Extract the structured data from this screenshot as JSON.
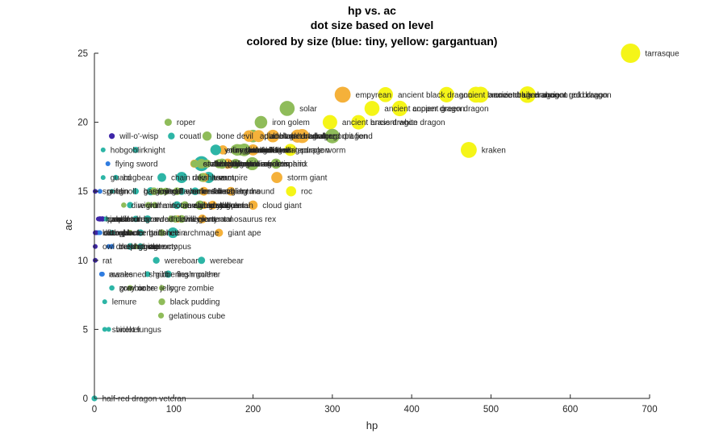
{
  "chart_data": {
    "type": "scatter",
    "title_lines": [
      "hp vs. ac",
      "dot size based on level",
      "colored by size (blue: tiny, yellow: gargantuan)"
    ],
    "xlabel": "hp",
    "ylabel": "ac",
    "xlim": [
      0,
      700
    ],
    "ylim": [
      0,
      25
    ],
    "xticks": [
      0,
      100,
      200,
      300,
      400,
      500,
      600,
      700
    ],
    "yticks": [
      0,
      5,
      10,
      15,
      20,
      25
    ],
    "size_colors": {
      "tiny": "#3e26a8",
      "small": "#2f7ce0",
      "medium": "#2db5a6",
      "large": "#8fbc5a",
      "huge": "#f5b13a",
      "gargantuan": "#f5f518"
    },
    "points": [
      {
        "name": "tarrasque",
        "x": 676,
        "y": 25,
        "level": 30,
        "size": "gargantuan"
      },
      {
        "name": "ancient black dragon",
        "x": 367,
        "y": 22,
        "level": 21,
        "size": "gargantuan"
      },
      {
        "name": "ancient blue dragon",
        "x": 481,
        "y": 22,
        "level": 23,
        "size": "gargantuan"
      },
      {
        "name": "ancient silver dragon",
        "x": 487,
        "y": 22,
        "level": 23,
        "size": "gargantuan"
      },
      {
        "name": "ancient gold dragon",
        "x": 546,
        "y": 22,
        "level": 24,
        "size": "gargantuan"
      },
      {
        "name": "ancient red dragon",
        "x": 546,
        "y": 22,
        "level": 24,
        "size": "gargantuan"
      },
      {
        "name": "ancient bronze dragon",
        "x": 444,
        "y": 22,
        "level": 22,
        "size": "gargantuan"
      },
      {
        "name": "ancient copper dragon",
        "x": 350,
        "y": 21,
        "level": 21,
        "size": "gargantuan"
      },
      {
        "name": "ancient green dragon",
        "x": 385,
        "y": 21,
        "level": 22,
        "size": "gargantuan"
      },
      {
        "name": "ancient brass dragon",
        "x": 297,
        "y": 20,
        "level": 20,
        "size": "gargantuan"
      },
      {
        "name": "ancient white dragon",
        "x": 333,
        "y": 20,
        "level": 20,
        "size": "gargantuan"
      },
      {
        "name": "kraken",
        "x": 472,
        "y": 18,
        "level": 23,
        "size": "gargantuan"
      },
      {
        "name": "solar",
        "x": 243,
        "y": 21,
        "level": 21,
        "size": "large"
      },
      {
        "name": "roper",
        "x": 93,
        "y": 20,
        "level": 5,
        "size": "large"
      },
      {
        "name": "iron golem",
        "x": 210,
        "y": 20,
        "level": 16,
        "size": "large"
      },
      {
        "name": "will-o'-wisp",
        "x": 22,
        "y": 19,
        "level": 2,
        "size": "tiny"
      },
      {
        "name": "storm giant",
        "x": 230,
        "y": 16,
        "level": 13,
        "size": "huge"
      },
      {
        "name": "roc",
        "x": 248,
        "y": 15,
        "level": 11,
        "size": "gargantuan"
      },
      {
        "name": "cloud giant",
        "x": 200,
        "y": 14,
        "level": 9,
        "size": "huge"
      },
      {
        "name": "werebear",
        "x": 135,
        "y": 10,
        "level": 5,
        "size": "medium"
      },
      {
        "name": "black pudding",
        "x": 85,
        "y": 7,
        "level": 4,
        "size": "large"
      },
      {
        "name": "gelatinous cube",
        "x": 84,
        "y": 6,
        "level": 2,
        "size": "large"
      },
      {
        "name": "ogre zombie",
        "x": 85,
        "y": 8,
        "level": 2,
        "size": "large"
      },
      {
        "name": "lemure",
        "x": 13,
        "y": 7,
        "level": 0,
        "size": "medium"
      },
      {
        "name": "shrieker",
        "x": 13,
        "y": 5,
        "level": 0,
        "size": "medium"
      },
      {
        "name": "violet fungus",
        "x": 18,
        "y": 5,
        "level": 0,
        "size": "medium"
      },
      {
        "name": "half-red dragon veteran",
        "x": 0,
        "y": 0,
        "level": 2,
        "size": "medium"
      },
      {
        "name": "hobgoblin",
        "x": 11,
        "y": 18,
        "level": 0,
        "size": "medium"
      },
      {
        "name": "tyrannosaurus rex",
        "x": 136,
        "y": 13,
        "level": 8,
        "size": "huge"
      },
      {
        "name": "giant ape",
        "x": 157,
        "y": 12,
        "level": 7,
        "size": "huge"
      },
      {
        "name": "shambling mound",
        "x": 136,
        "y": 15,
        "level": 5,
        "size": "large"
      },
      {
        "name": "vampire",
        "x": 144,
        "y": 16,
        "level": 13,
        "size": "medium"
      },
      {
        "name": "androsphinx",
        "x": 199,
        "y": 17,
        "level": 17,
        "size": "large"
      },
      {
        "name": "purple worm",
        "x": 247,
        "y": 18,
        "level": 15,
        "size": "gargantuan"
      },
      {
        "name": "bone devil",
        "x": 142,
        "y": 19,
        "level": 9,
        "size": "large"
      },
      {
        "name": "couatl",
        "x": 97,
        "y": 19,
        "level": 4,
        "size": "medium"
      },
      {
        "name": "archmage",
        "x": 99,
        "y": 12,
        "level": 12,
        "size": "medium"
      },
      {
        "name": "swarm",
        "x": 22,
        "y": 12,
        "level": 1,
        "size": "medium"
      },
      {
        "name": "wereboar",
        "x": 78,
        "y": 10,
        "level": 4,
        "size": "medium"
      },
      {
        "name": "awakened shrub",
        "x": 10,
        "y": 9,
        "level": 0,
        "size": "small"
      },
      {
        "name": "gibbering mouther",
        "x": 67,
        "y": 9,
        "level": 2,
        "size": "medium"
      },
      {
        "name": "gray ooze",
        "x": 22,
        "y": 8,
        "level": 1,
        "size": "medium"
      },
      {
        "name": "ochre jelly",
        "x": 45,
        "y": 8,
        "level": 2,
        "size": "large"
      },
      {
        "name": "flying sword",
        "x": 17,
        "y": 17,
        "level": 0,
        "size": "small"
      },
      {
        "name": "otyugh",
        "x": 114,
        "y": 14,
        "level": 5,
        "size": "large"
      },
      {
        "name": "treant",
        "x": 138,
        "y": 16,
        "level": 9,
        "size": "huge"
      },
      {
        "name": "octopus",
        "x": 3,
        "y": 12,
        "level": 0,
        "size": "small"
      },
      {
        "name": "giant octopus",
        "x": 52,
        "y": 11,
        "level": 1,
        "size": "large"
      },
      {
        "name": "deva",
        "x": 136,
        "y": 17,
        "level": 10,
        "size": "medium"
      },
      {
        "name": "planetar",
        "x": 200,
        "y": 19,
        "level": 16,
        "size": "large"
      },
      {
        "name": "pit fiend",
        "x": 300,
        "y": 19,
        "level": 20,
        "size": "large"
      },
      {
        "name": "balor",
        "x": 262,
        "y": 19,
        "level": 19,
        "size": "huge"
      },
      {
        "name": "lich",
        "x": 135,
        "y": 17,
        "level": 21,
        "size": "medium"
      },
      {
        "name": "goblin",
        "x": 7,
        "y": 15,
        "level": 0,
        "size": "small"
      },
      {
        "name": "kobold",
        "x": 5,
        "y": 12,
        "level": 0,
        "size": "small"
      },
      {
        "name": "guard",
        "x": 11,
        "y": 16,
        "level": 0,
        "size": "medium"
      },
      {
        "name": "knight",
        "x": 52,
        "y": 18,
        "level": 3,
        "size": "medium"
      },
      {
        "name": "ogre",
        "x": 59,
        "y": 11,
        "level": 2,
        "size": "large"
      },
      {
        "name": "troll",
        "x": 84,
        "y": 15,
        "level": 5,
        "size": "large"
      },
      {
        "name": "hill giant",
        "x": 105,
        "y": 13,
        "level": 5,
        "size": "huge"
      },
      {
        "name": "stone giant",
        "x": 126,
        "y": 17,
        "level": 7,
        "size": "huge"
      },
      {
        "name": "frost giant",
        "x": 138,
        "y": 15,
        "level": 8,
        "size": "huge"
      },
      {
        "name": "fire giant",
        "x": 162,
        "y": 18,
        "level": 9,
        "size": "huge"
      },
      {
        "name": "young red dragon",
        "x": 178,
        "y": 18,
        "level": 10,
        "size": "large"
      },
      {
        "name": "young blue dragon",
        "x": 152,
        "y": 18,
        "level": 9,
        "size": "large"
      },
      {
        "name": "adult red dragon",
        "x": 256,
        "y": 19,
        "level": 17,
        "size": "huge"
      },
      {
        "name": "adult blue dragon",
        "x": 225,
        "y": 19,
        "level": 16,
        "size": "huge"
      },
      {
        "name": "adult black dragon",
        "x": 195,
        "y": 19,
        "level": 14,
        "size": "huge"
      },
      {
        "name": "adult green dragon",
        "x": 207,
        "y": 19,
        "level": 15,
        "size": "huge"
      },
      {
        "name": "adult white dragon",
        "x": 200,
        "y": 18,
        "level": 13,
        "size": "huge"
      },
      {
        "name": "behir",
        "x": 168,
        "y": 17,
        "level": 11,
        "size": "huge"
      },
      {
        "name": "chimera",
        "x": 114,
        "y": 14,
        "level": 6,
        "size": "large"
      },
      {
        "name": "basilisk",
        "x": 52,
        "y": 15,
        "level": 3,
        "size": "medium"
      },
      {
        "name": "manticore",
        "x": 68,
        "y": 14,
        "level": 3,
        "size": "large"
      },
      {
        "name": "griffon",
        "x": 59,
        "y": 12,
        "level": 2,
        "size": "large"
      },
      {
        "name": "wyvern",
        "x": 110,
        "y": 13,
        "level": 6,
        "size": "large"
      },
      {
        "name": "hydra",
        "x": 172,
        "y": 15,
        "level": 8,
        "size": "huge"
      },
      {
        "name": "mummy",
        "x": 58,
        "y": 11,
        "level": 3,
        "size": "medium"
      },
      {
        "name": "ghoul",
        "x": 22,
        "y": 12,
        "level": 1,
        "size": "medium"
      },
      {
        "name": "wight",
        "x": 45,
        "y": 14,
        "level": 3,
        "size": "medium"
      },
      {
        "name": "zombie",
        "x": 22,
        "y": 8,
        "level": 0,
        "size": "medium"
      },
      {
        "name": "skeleton",
        "x": 13,
        "y": 13,
        "level": 0,
        "size": "medium"
      },
      {
        "name": "wolf",
        "x": 11,
        "y": 13,
        "level": 0,
        "size": "medium"
      },
      {
        "name": "dire wolf",
        "x": 37,
        "y": 14,
        "level": 1,
        "size": "large"
      },
      {
        "name": "bat",
        "x": 1,
        "y": 12,
        "level": 0,
        "size": "tiny"
      },
      {
        "name": "rat",
        "x": 1,
        "y": 10,
        "level": 0,
        "size": "tiny"
      },
      {
        "name": "cat",
        "x": 2,
        "y": 12,
        "level": 0,
        "size": "tiny"
      },
      {
        "name": "owl",
        "x": 1,
        "y": 11,
        "level": 0,
        "size": "tiny"
      },
      {
        "name": "imp",
        "x": 10,
        "y": 13,
        "level": 1,
        "size": "tiny"
      },
      {
        "name": "quasit",
        "x": 7,
        "y": 13,
        "level": 1,
        "size": "tiny"
      },
      {
        "name": "pseudodragon",
        "x": 7,
        "y": 13,
        "level": 0,
        "size": "tiny"
      },
      {
        "name": "sprite",
        "x": 1,
        "y": 15,
        "level": 0,
        "size": "tiny"
      },
      {
        "name": "homunculus",
        "x": 5,
        "y": 13,
        "level": 0,
        "size": "tiny"
      },
      {
        "name": "flumph",
        "x": 7,
        "y": 12,
        "level": 0,
        "size": "small"
      },
      {
        "name": "darkmantle",
        "x": 22,
        "y": 11,
        "level": 0,
        "size": "small"
      },
      {
        "name": "gnoll",
        "x": 22,
        "y": 15,
        "level": 0,
        "size": "medium"
      },
      {
        "name": "orc",
        "x": 15,
        "y": 13,
        "level": 0,
        "size": "medium"
      },
      {
        "name": "bugbear",
        "x": 27,
        "y": 16,
        "level": 1,
        "size": "medium"
      },
      {
        "name": "centaur",
        "x": 45,
        "y": 12,
        "level": 2,
        "size": "large"
      },
      {
        "name": "minotaur",
        "x": 76,
        "y": 14,
        "level": 3,
        "size": "large"
      },
      {
        "name": "ettin",
        "x": 85,
        "y": 12,
        "level": 4,
        "size": "large"
      },
      {
        "name": "cyclops",
        "x": 138,
        "y": 14,
        "level": 6,
        "size": "huge"
      },
      {
        "name": "fomorian",
        "x": 149,
        "y": 14,
        "level": 8,
        "size": "huge"
      },
      {
        "name": "aboleth",
        "x": 135,
        "y": 17,
        "level": 10,
        "size": "large"
      },
      {
        "name": "beholder",
        "x": 180,
        "y": 18,
        "level": 13,
        "size": "large"
      },
      {
        "name": "mind flayer",
        "x": 71,
        "y": 15,
        "level": 7,
        "size": "medium"
      },
      {
        "name": "naga",
        "x": 75,
        "y": 15,
        "level": 6,
        "size": "large"
      },
      {
        "name": "medusa",
        "x": 127,
        "y": 15,
        "level": 6,
        "size": "medium"
      },
      {
        "name": "lamia",
        "x": 97,
        "y": 13,
        "level": 4,
        "size": "large"
      },
      {
        "name": "wraith",
        "x": 67,
        "y": 13,
        "level": 5,
        "size": "medium"
      },
      {
        "name": "banshee",
        "x": 58,
        "y": 12,
        "level": 4,
        "size": "medium"
      },
      {
        "name": "specter",
        "x": 22,
        "y": 12,
        "level": 1,
        "size": "medium"
      },
      {
        "name": "ghost",
        "x": 45,
        "y": 11,
        "level": 4,
        "size": "medium"
      },
      {
        "name": "golem",
        "x": 178,
        "y": 17,
        "level": 10,
        "size": "large"
      },
      {
        "name": "clay golem",
        "x": 133,
        "y": 14,
        "level": 9,
        "size": "large"
      },
      {
        "name": "flesh golem",
        "x": 93,
        "y": 9,
        "level": 5,
        "size": "medium"
      },
      {
        "name": "stone golem",
        "x": 178,
        "y": 17,
        "level": 10,
        "size": "large"
      },
      {
        "name": "shield guardian",
        "x": 142,
        "y": 17,
        "level": 7,
        "size": "large"
      },
      {
        "name": "elemental",
        "x": 114,
        "y": 14,
        "level": 5,
        "size": "large"
      },
      {
        "name": "earth elemental",
        "x": 126,
        "y": 17,
        "level": 5,
        "size": "large"
      },
      {
        "name": "fire elemental",
        "x": 102,
        "y": 13,
        "level": 5,
        "size": "large"
      },
      {
        "name": "air elemental",
        "x": 90,
        "y": 15,
        "level": 5,
        "size": "large"
      },
      {
        "name": "water elemental",
        "x": 114,
        "y": 14,
        "level": 5,
        "size": "large"
      },
      {
        "name": "ice devil",
        "x": 180,
        "y": 18,
        "level": 14,
        "size": "large"
      },
      {
        "name": "horned devil",
        "x": 178,
        "y": 18,
        "level": 11,
        "size": "large"
      },
      {
        "name": "chain devil",
        "x": 85,
        "y": 16,
        "level": 8,
        "size": "medium"
      },
      {
        "name": "bearded devil",
        "x": 52,
        "y": 13,
        "level": 3,
        "size": "medium"
      },
      {
        "name": "barbed devil",
        "x": 110,
        "y": 15,
        "level": 5,
        "size": "medium"
      },
      {
        "name": "erinyes",
        "x": 153,
        "y": 18,
        "level": 12,
        "size": "medium"
      },
      {
        "name": "rakshasa",
        "x": 110,
        "y": 16,
        "level": 13,
        "size": "medium"
      },
      {
        "name": "marilith",
        "x": 189,
        "y": 18,
        "level": 16,
        "size": "large"
      },
      {
        "name": "nalfeshnee",
        "x": 184,
        "y": 18,
        "level": 13,
        "size": "large"
      },
      {
        "name": "glabrezu",
        "x": 157,
        "y": 17,
        "level": 9,
        "size": "large"
      },
      {
        "name": "hezrou",
        "x": 136,
        "y": 16,
        "level": 8,
        "size": "large"
      },
      {
        "name": "vrock",
        "x": 104,
        "y": 15,
        "level": 6,
        "size": "large"
      },
      {
        "name": "dretch",
        "x": 18,
        "y": 11,
        "level": 0,
        "size": "small"
      },
      {
        "name": "manes",
        "x": 9,
        "y": 9,
        "level": 0,
        "size": "small"
      },
      {
        "name": "mephit",
        "x": 22,
        "y": 11,
        "level": 0,
        "size": "small"
      },
      {
        "name": "gargoyle",
        "x": 52,
        "y": 15,
        "level": 2,
        "size": "medium"
      },
      {
        "name": "invisible stalker",
        "x": 104,
        "y": 14,
        "level": 6,
        "size": "medium"
      },
      {
        "name": "djinni",
        "x": 161,
        "y": 17,
        "level": 11,
        "size": "large"
      },
      {
        "name": "efreeti",
        "x": 200,
        "y": 17,
        "level": 11,
        "size": "large"
      },
      {
        "name": "marid",
        "x": 229,
        "y": 17,
        "level": 11,
        "size": "large"
      },
      {
        "name": "dao",
        "x": 187,
        "y": 18,
        "level": 11,
        "size": "large"
      },
      {
        "name": "empyrean",
        "x": 313,
        "y": 22,
        "level": 23,
        "size": "huge"
      }
    ]
  }
}
